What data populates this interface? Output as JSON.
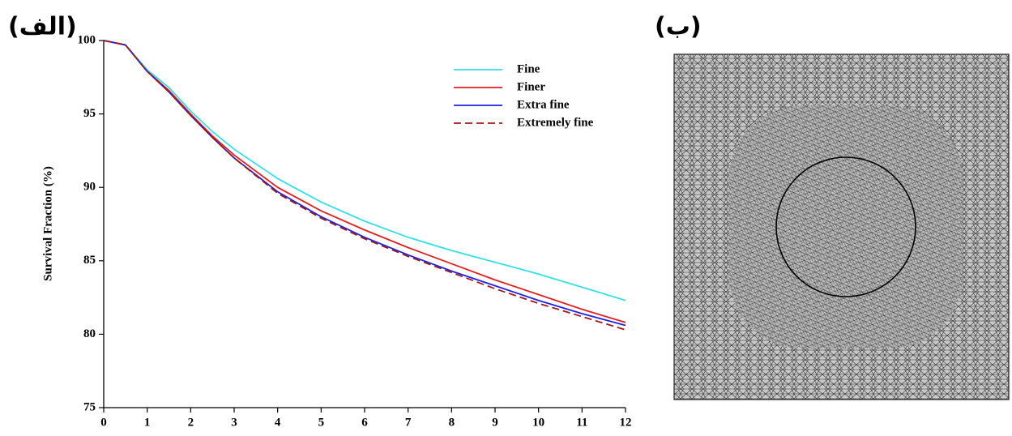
{
  "panel_labels": [
    "(الف)",
    "(ب)"
  ],
  "chart_data": {
    "type": "line",
    "y_label": "Survival Fraction (%)",
    "x": [
      0,
      0.5,
      1,
      1.5,
      2,
      2.5,
      3,
      4,
      5,
      6,
      7,
      8,
      9,
      10,
      11,
      12
    ],
    "xlim": [
      0,
      12
    ],
    "xticks": [
      0,
      1,
      2,
      3,
      4,
      5,
      6,
      7,
      8,
      9,
      10,
      11,
      12
    ],
    "ylim": [
      75,
      100
    ],
    "yticks": [
      75,
      80,
      85,
      90,
      95,
      100
    ],
    "grid": false,
    "legend": "upper right",
    "series": [
      {
        "name": "Fine",
        "color": "#33e0e8",
        "dash": false,
        "values": [
          100,
          99.7,
          98.0,
          96.8,
          95.2,
          93.8,
          92.6,
          90.6,
          89.0,
          87.7,
          86.6,
          85.7,
          84.9,
          84.1,
          83.2,
          82.3
        ]
      },
      {
        "name": "Finer",
        "color": "#e02020",
        "dash": false,
        "values": [
          100,
          99.7,
          97.9,
          96.6,
          95.0,
          93.5,
          92.2,
          90.0,
          88.4,
          87.1,
          85.9,
          84.8,
          83.7,
          82.7,
          81.7,
          80.8
        ]
      },
      {
        "name": "Extra fine",
        "color": "#2020e0",
        "dash": false,
        "values": [
          100,
          99.7,
          97.9,
          96.5,
          94.9,
          93.4,
          92.0,
          89.7,
          88.0,
          86.6,
          85.4,
          84.3,
          83.3,
          82.3,
          81.4,
          80.6
        ]
      },
      {
        "name": "Extremely fine",
        "color": "#a01818",
        "dash": true,
        "values": [
          100,
          99.7,
          97.9,
          96.5,
          94.9,
          93.4,
          92.0,
          89.6,
          87.9,
          86.5,
          85.3,
          84.2,
          83.1,
          82.1,
          81.2,
          80.3
        ]
      }
    ]
  }
}
